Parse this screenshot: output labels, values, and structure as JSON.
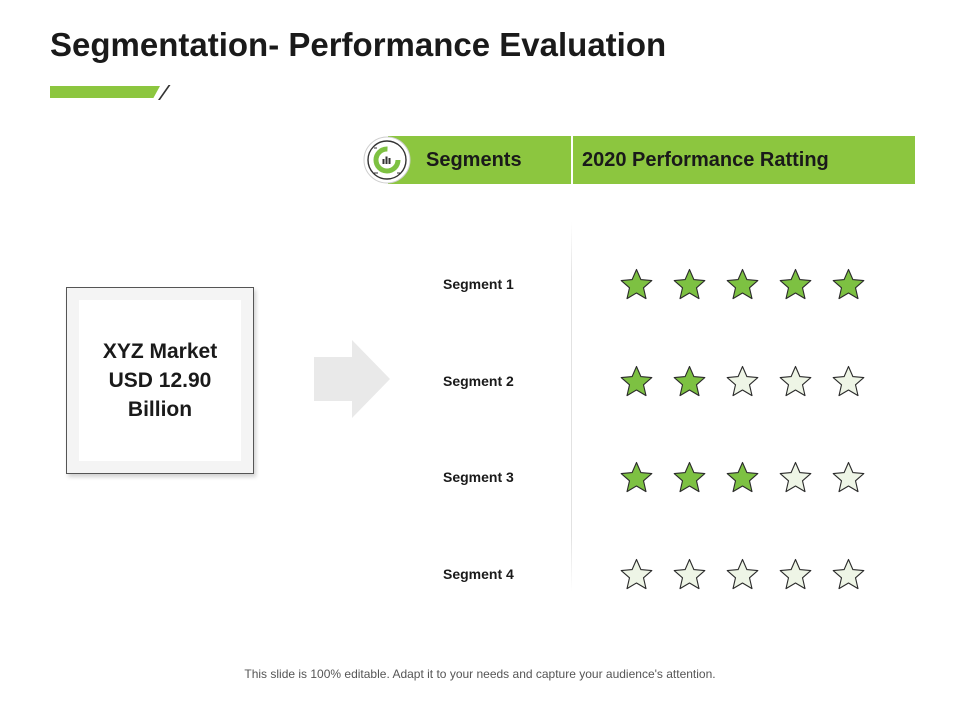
{
  "slide": {
    "title": "Segmentation- Performance Evaluation",
    "accent_color": "#8cc63f"
  },
  "header": {
    "col1": "Segments",
    "col2": "2020 Performance Ratting",
    "icon": "chart-circle-icon"
  },
  "market": {
    "line1": "XYZ Market",
    "line2": "USD 12.90",
    "line3": "Billion"
  },
  "arrow": {
    "icon": "right-arrow-icon",
    "color": "#e9e9e9"
  },
  "ratings": {
    "max_stars": 5,
    "filled_color": "#7dc142",
    "empty_color": "#eef5e6",
    "rows": [
      {
        "label": "Segment 1",
        "stars": 5
      },
      {
        "label": "Segment 2",
        "stars": 2
      },
      {
        "label": "Segment 3",
        "stars": 3
      },
      {
        "label": "Segment 4",
        "stars": 0
      }
    ]
  },
  "footer": {
    "text": "This slide is 100% editable. Adapt it to your needs and capture your audience's attention."
  }
}
